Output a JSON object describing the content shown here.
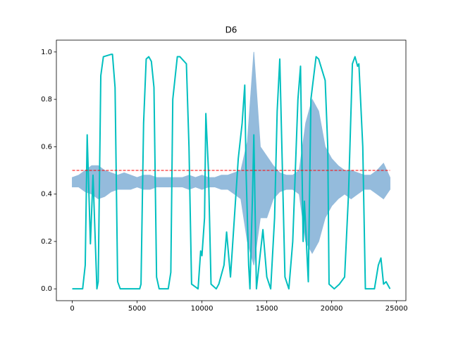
{
  "chart_data": {
    "type": "line",
    "title": "D6",
    "xlim": [
      -1225,
      25725
    ],
    "ylim": [
      -0.05,
      1.05
    ],
    "xticks": [
      0,
      5000,
      10000,
      15000,
      20000,
      25000
    ],
    "yticks": [
      {
        "value": 0,
        "label": "0.0"
      },
      0.2,
      0.4,
      0.6,
      0.8,
      {
        "value": 1,
        "label": "1.0"
      }
    ],
    "series": [
      {
        "kind": "band",
        "color": "#94bbdc",
        "x": [
          0,
          500,
          1000,
          1500,
          2000,
          2500,
          3000,
          3500,
          4000,
          4500,
          5000,
          5500,
          6000,
          6500,
          7000,
          7500,
          8000,
          8500,
          9000,
          9500,
          10000,
          10500,
          11000,
          11500,
          12000,
          12500,
          13000,
          13500,
          14000,
          14500,
          15000,
          15500,
          16000,
          16500,
          17000,
          17500,
          18000,
          18500,
          19000,
          19500,
          20000,
          20500,
          21000,
          21500,
          22000,
          22500,
          23000,
          23500,
          24000,
          24500
        ],
        "upper": [
          0.47,
          0.48,
          0.5,
          0.52,
          0.52,
          0.5,
          0.49,
          0.48,
          0.49,
          0.48,
          0.47,
          0.48,
          0.48,
          0.47,
          0.47,
          0.47,
          0.47,
          0.47,
          0.48,
          0.47,
          0.48,
          0.47,
          0.47,
          0.48,
          0.48,
          0.49,
          0.5,
          0.62,
          1.0,
          0.6,
          0.56,
          0.52,
          0.49,
          0.48,
          0.48,
          0.5,
          0.7,
          0.8,
          0.75,
          0.6,
          0.55,
          0.52,
          0.5,
          0.5,
          0.49,
          0.48,
          0.48,
          0.5,
          0.53,
          0.47
        ],
        "lower": [
          0.43,
          0.43,
          0.41,
          0.4,
          0.38,
          0.39,
          0.41,
          0.42,
          0.42,
          0.42,
          0.43,
          0.42,
          0.42,
          0.43,
          0.43,
          0.43,
          0.43,
          0.43,
          0.42,
          0.43,
          0.42,
          0.43,
          0.43,
          0.42,
          0.42,
          0.4,
          0.38,
          0.2,
          0.1,
          0.3,
          0.3,
          0.38,
          0.41,
          0.42,
          0.42,
          0.4,
          0.2,
          0.15,
          0.2,
          0.3,
          0.35,
          0.38,
          0.4,
          0.38,
          0.4,
          0.42,
          0.42,
          0.4,
          0.38,
          0.42
        ]
      },
      {
        "kind": "line",
        "color": "#00bfbf",
        "x": [
          0,
          800,
          1000,
          1150,
          1400,
          1600,
          1900,
          2000,
          2200,
          2400,
          3000,
          3100,
          3300,
          3500,
          3700,
          5200,
          5300,
          5500,
          5700,
          5900,
          6100,
          6300,
          6500,
          6700,
          7400,
          7600,
          7750,
          8100,
          8300,
          8800,
          9000,
          9200,
          9700,
          9900,
          10000,
          10200,
          10300,
          10500,
          10700,
          11100,
          11300,
          11700,
          11900,
          12200,
          12500,
          12800,
          13100,
          13300,
          13400,
          13600,
          13700,
          13900,
          14000,
          14200,
          14700,
          15000,
          15300,
          15600,
          15800,
          16000,
          16400,
          16700,
          17000,
          17400,
          17600,
          17800,
          17900,
          18200,
          18400,
          18800,
          19000,
          19500,
          19700,
          19800,
          20200,
          20600,
          21000,
          21300,
          21600,
          21800,
          22000,
          22100,
          22400,
          22600,
          23300,
          23600,
          23800,
          24000,
          24200,
          24500
        ],
        "values": [
          0,
          0,
          0.1,
          0.65,
          0.19,
          0.48,
          0,
          0.03,
          0.9,
          0.98,
          0.99,
          0.99,
          0.85,
          0.03,
          0,
          0,
          0.02,
          0.7,
          0.97,
          0.98,
          0.96,
          0.85,
          0.05,
          0,
          0,
          0.07,
          0.8,
          0.98,
          0.98,
          0.95,
          0.6,
          0.02,
          0,
          0.16,
          0.14,
          0.3,
          0.74,
          0.5,
          0.02,
          0,
          0.02,
          0.1,
          0.24,
          0.05,
          0.3,
          0.55,
          0.7,
          0.86,
          0.5,
          0.1,
          0,
          0.4,
          0.65,
          0,
          0.25,
          0.05,
          0,
          0.3,
          0.75,
          0.97,
          0.05,
          0,
          0.2,
          0.8,
          0.94,
          0.2,
          0.37,
          0.03,
          0.8,
          0.98,
          0.97,
          0.88,
          0.6,
          0.02,
          0,
          0.02,
          0.05,
          0.4,
          0.95,
          0.98,
          0.94,
          0.95,
          0.6,
          0,
          0,
          0.1,
          0.13,
          0.02,
          0.03,
          0
        ]
      },
      {
        "kind": "dashed",
        "color": "#ff0000",
        "x": [
          0,
          24500
        ],
        "values": [
          0.5,
          0.5
        ]
      }
    ]
  }
}
